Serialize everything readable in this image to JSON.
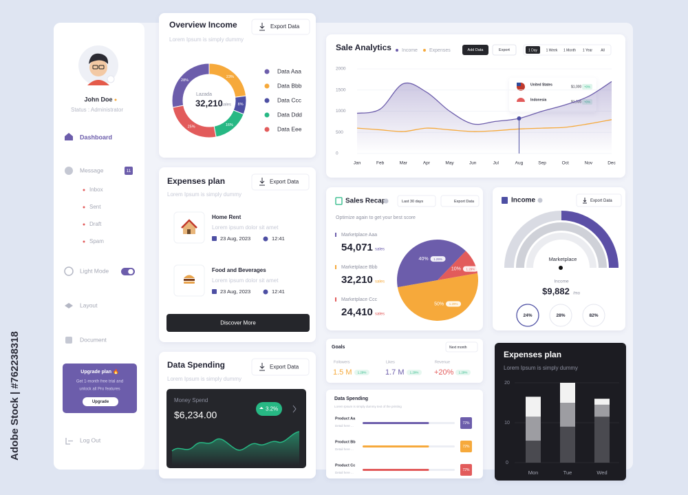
{
  "watermark": "Adobe Stock | #762238318",
  "sidebar": {
    "name": "John Doe",
    "status": "Status : Administrator",
    "dashboard": "Dashboard",
    "message": "Message",
    "message_count": 11,
    "submenu": [
      "Inbox",
      "Sent",
      "Draft",
      "Spam"
    ],
    "light_mode": "Light Mode",
    "layout": "Layout",
    "document": "Document",
    "upgrade": {
      "title": "Upgrade plan 🔥",
      "lines": [
        "Get 1-month free trial and",
        "unlock all Pro features"
      ],
      "button": "Upgrade"
    },
    "logout": "Log Out"
  },
  "overview_income": {
    "title": "Overview Income",
    "export": "Export Data",
    "subtitle": "Lorem Ipsum is simply dummy",
    "chart_data": {
      "type": "donut",
      "center": {
        "label": "Lazada",
        "value": "32,210",
        "unit": "sales"
      },
      "categories": [
        "Data Aaa",
        "Data Bbb",
        "Data Ccc",
        "Data Ddd",
        "Data Eee"
      ],
      "values": [
        28,
        23,
        8,
        16,
        25
      ],
      "value_labels": [
        "28%",
        "23%",
        "8%",
        "16%",
        "25%"
      ],
      "colors": [
        "#6c5dab",
        "#f6a93b",
        "#4d4fa3",
        "#27b884",
        "#e25b5b"
      ]
    }
  },
  "expenses_plan": {
    "title": "Expenses plan",
    "export": "Export Data",
    "subtitle": "Lorem Ipsum is simply dummy",
    "items": [
      {
        "title": "Home Rent",
        "text": "Lorem ipsum dolor sit amet",
        "date": "23 Aug, 2023",
        "time": "12:41"
      },
      {
        "title": "Food and Beverages",
        "text": "Lorem ipsum dolor sit amet",
        "date": "23 Aug, 2023",
        "time": "12:41"
      }
    ],
    "button": "Discover More"
  },
  "data_spending": {
    "title": "Data Spending",
    "export": "Export Data",
    "subtitle": "Lorem Ipsum is simply dummy",
    "label": "Money Spend",
    "amount": "$6,234.00",
    "change": "3.2%"
  },
  "sale_analytics": {
    "buttons": {
      "add": "Add Data",
      "export": "Export"
    },
    "ranges": [
      "1 Day",
      "1 Week",
      "1 Month",
      "1 Year",
      "All"
    ],
    "tooltip": [
      {
        "country": "United States",
        "amount": "$1,000",
        "change": "+0%"
      },
      {
        "country": "Indonesia",
        "amount": "$1,000",
        "change": "+0%"
      }
    ],
    "chart_data": {
      "type": "line",
      "title": "Sale Analytics",
      "categories": [
        "Jan",
        "Feb",
        "Mar",
        "Apr",
        "May",
        "Jun",
        "Jul",
        "Aug",
        "Sep",
        "Oct",
        "Nov",
        "Dec"
      ],
      "series": [
        {
          "name": "Income",
          "color": "#6c5dab",
          "values": [
            950,
            1050,
            1650,
            1450,
            1000,
            700,
            760,
            830,
            1000,
            1150,
            1350,
            1700
          ]
        },
        {
          "name": "Expenses",
          "color": "#f6a93b",
          "values": [
            600,
            560,
            520,
            600,
            560,
            520,
            540,
            580,
            600,
            620,
            700,
            800
          ]
        }
      ],
      "ylim": [
        0,
        2000
      ],
      "yticks": [
        0,
        500,
        1000,
        1500,
        2000
      ]
    }
  },
  "sales_recap": {
    "title": "Sales Recap",
    "period": "Last 30 days",
    "export": "Export Data",
    "subtitle": "Optimize again to get your best score",
    "sales": [
      "54,071",
      "32,210",
      "24,410"
    ],
    "unit": "sales",
    "badge": "1.29%",
    "chart_data": {
      "type": "pie",
      "categories": [
        "Marketplace Aaa",
        "Marketplace Bbb",
        "Marketplace Ccc"
      ],
      "values": [
        40,
        50,
        10
      ],
      "value_labels": [
        "40%",
        "50%",
        "10%"
      ],
      "colors": [
        "#6c5dab",
        "#f6a93b",
        "#e25b5b"
      ]
    }
  },
  "income": {
    "title": "Income",
    "export": "Export Data",
    "gauge_label": "Marketplace",
    "label": "Income",
    "amount": "$9,882",
    "period": "/mo",
    "rates": [
      "24%",
      "28%",
      "82%"
    ]
  },
  "goals": {
    "title": "Goals",
    "period": "Next month",
    "items": [
      {
        "label": "Followers",
        "value": "1.5 M",
        "change": "1.29%",
        "color": "#f6a93b"
      },
      {
        "label": "Likes",
        "value": "1.7 M",
        "change": "1.29%",
        "color": "#6c5dab"
      },
      {
        "label": "Revenue",
        "value": "+20%",
        "change": "1.29%",
        "color": "#e25b5b"
      }
    ]
  },
  "data_spending_products": {
    "title": "Data Spending",
    "subtitle": "Lorem Ipsum is simply dummy text of the printing",
    "items": [
      {
        "name": "Product Aa",
        "detail": "Detail here ...",
        "value": 72,
        "value_label": "72%",
        "color": "#6c5dab"
      },
      {
        "name": "Product Bb",
        "detail": "Detail here ...",
        "value": 72,
        "value_label": "72%",
        "color": "#f6a93b"
      },
      {
        "name": "Product Cc",
        "detail": "Detail here ...",
        "value": 72,
        "value_label": "72%",
        "color": "#e25b5b"
      }
    ]
  },
  "expenses_chart": {
    "title": "Expenses plan",
    "subtitle": "Lorem Ipsum is simply dummy",
    "chart_data": {
      "type": "stacked_bar",
      "categories": [
        "Mon",
        "Tue",
        "Wed"
      ],
      "series": [
        {
          "color": "#4a4a50",
          "values": [
            5.5,
            9,
            11.5
          ]
        },
        {
          "color": "#9d9da2",
          "values": [
            6,
            6,
            3
          ]
        },
        {
          "color": "#f2f2f2",
          "values": [
            5,
            5,
            1.5
          ]
        }
      ],
      "ylim": [
        0,
        20
      ],
      "yticks": [
        0,
        10,
        20
      ]
    }
  }
}
